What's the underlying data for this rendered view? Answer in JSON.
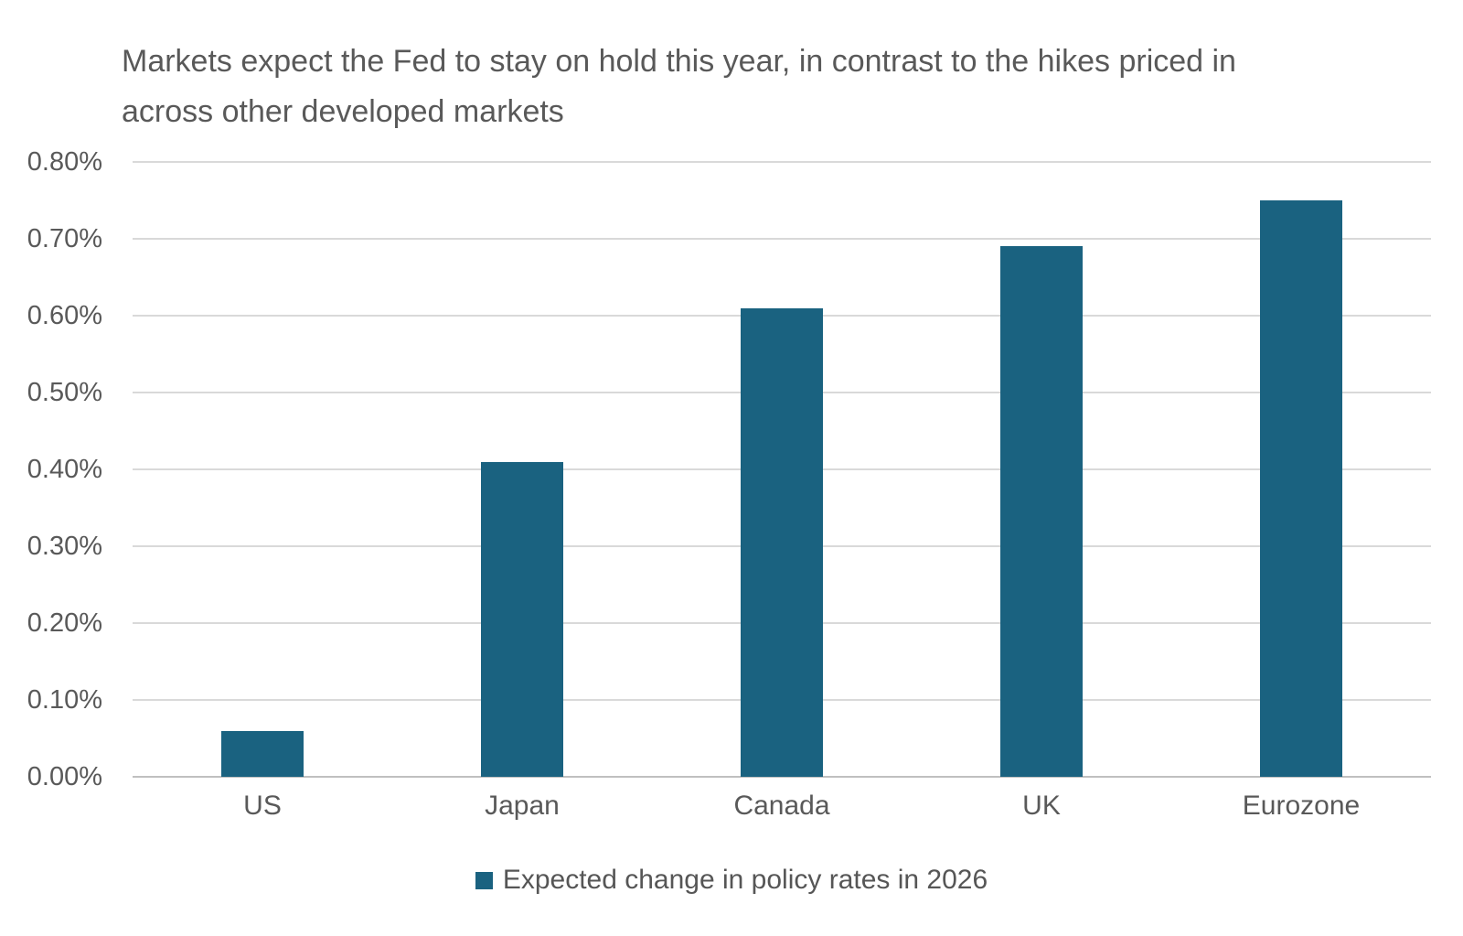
{
  "chart_data": {
    "type": "bar",
    "title": "Markets expect the Fed to stay on hold this year, in contrast to the hikes priced in across other developed markets",
    "categories": [
      "US",
      "Japan",
      "Canada",
      "UK",
      "Eurozone"
    ],
    "series": [
      {
        "name": "Expected change in policy rates in 2026",
        "values": [
          0.06,
          0.41,
          0.61,
          0.69,
          0.75
        ]
      }
    ],
    "value_unit": "%",
    "ylabel": "",
    "xlabel": "",
    "ylim": [
      0.0,
      0.8
    ],
    "y_tick_step": 0.1,
    "y_tick_labels_top_to_bottom": [
      "0.80%",
      "0.70%",
      "0.60%",
      "0.50%",
      "0.40%",
      "0.30%",
      "0.20%",
      "0.10%",
      "0.00%"
    ],
    "grid": true,
    "legend_position": "bottom"
  },
  "colors": {
    "bar_fill": "#1A6280",
    "gridline": "#D9D9D9",
    "axis_line": "#C0C0C0",
    "text": "#595959",
    "background": "#FFFFFF"
  }
}
